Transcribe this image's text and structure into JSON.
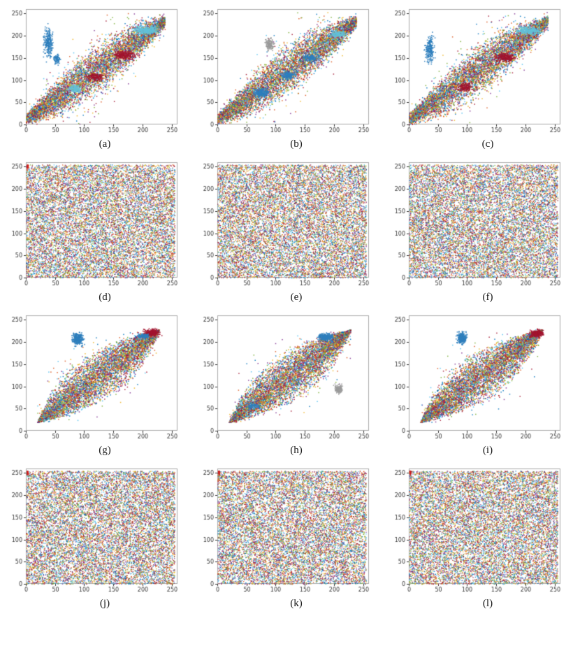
{
  "figure": {
    "palette": [
      "#0072BD",
      "#D95319",
      "#EDB120",
      "#7E2F8E",
      "#77AC30",
      "#4DBEEE",
      "#A2142F"
    ],
    "axis_color": "#333333",
    "box_color": "#aaaaaa"
  },
  "chart_data": [
    {
      "label": "(a)",
      "type": "scatter",
      "pattern": "diagonal-band",
      "xlim": [
        0,
        250
      ],
      "ylim": [
        0,
        250
      ],
      "xticks": [
        0,
        50,
        100,
        150,
        200,
        250
      ],
      "yticks": [
        0,
        50,
        100,
        150,
        200,
        250
      ],
      "n_points": 6500,
      "seed": 101,
      "clusters": [
        {
          "x": 38,
          "y": 185,
          "rx": 8,
          "ry": 34,
          "n": 260,
          "color": "#2e7ebd"
        },
        {
          "x": 52,
          "y": 148,
          "rx": 6,
          "ry": 12,
          "n": 90,
          "color": "#2e7ebd"
        },
        {
          "x": 205,
          "y": 213,
          "rx": 22,
          "ry": 9,
          "n": 300,
          "color": "#63c1d8"
        },
        {
          "x": 168,
          "y": 158,
          "rx": 18,
          "ry": 10,
          "n": 230,
          "color": "#a2142f"
        },
        {
          "x": 118,
          "y": 108,
          "rx": 14,
          "ry": 9,
          "n": 150,
          "color": "#a2142f"
        },
        {
          "x": 84,
          "y": 82,
          "rx": 12,
          "ry": 8,
          "n": 130,
          "color": "#63c1d8"
        }
      ]
    },
    {
      "label": "(b)",
      "type": "scatter",
      "pattern": "diagonal-band",
      "xlim": [
        0,
        250
      ],
      "ylim": [
        0,
        250
      ],
      "xticks": [
        0,
        50,
        100,
        150,
        200,
        250
      ],
      "yticks": [
        0,
        50,
        100,
        150,
        200,
        250
      ],
      "n_points": 6500,
      "seed": 202,
      "clusters": [
        {
          "x": 88,
          "y": 182,
          "rx": 7,
          "ry": 14,
          "n": 150,
          "color": "#9a9a9a"
        },
        {
          "x": 75,
          "y": 72,
          "rx": 14,
          "ry": 10,
          "n": 220,
          "color": "#2e7ebd"
        },
        {
          "x": 120,
          "y": 112,
          "rx": 12,
          "ry": 9,
          "n": 170,
          "color": "#2e7ebd"
        },
        {
          "x": 160,
          "y": 152,
          "rx": 14,
          "ry": 9,
          "n": 160,
          "color": "#2e7ebd"
        },
        {
          "x": 205,
          "y": 205,
          "rx": 14,
          "ry": 8,
          "n": 140,
          "color": "#63c1d8"
        }
      ]
    },
    {
      "label": "(c)",
      "type": "scatter",
      "pattern": "diagonal-band",
      "xlim": [
        0,
        250
      ],
      "ylim": [
        0,
        250
      ],
      "xticks": [
        0,
        50,
        100,
        150,
        200,
        250
      ],
      "yticks": [
        0,
        50,
        100,
        150,
        200,
        250
      ],
      "n_points": 6500,
      "seed": 303,
      "clusters": [
        {
          "x": 35,
          "y": 170,
          "rx": 8,
          "ry": 30,
          "n": 230,
          "color": "#2e7ebd"
        },
        {
          "x": 205,
          "y": 213,
          "rx": 20,
          "ry": 9,
          "n": 260,
          "color": "#63c1d8"
        },
        {
          "x": 165,
          "y": 152,
          "rx": 16,
          "ry": 10,
          "n": 230,
          "color": "#a2142f"
        },
        {
          "x": 95,
          "y": 85,
          "rx": 12,
          "ry": 9,
          "n": 130,
          "color": "#a2142f"
        }
      ]
    },
    {
      "label": "(d)",
      "type": "scatter",
      "pattern": "uniform",
      "xlim": [
        0,
        250
      ],
      "ylim": [
        0,
        250
      ],
      "xticks": [
        0,
        50,
        100,
        150,
        200,
        250
      ],
      "yticks": [
        0,
        50,
        100,
        150,
        200,
        250
      ],
      "n_points": 13000,
      "seed": 404,
      "clusters": [
        {
          "x": 2,
          "y": 252,
          "rx": 1,
          "ry": 4,
          "n": 40,
          "color": "#cc2222"
        }
      ]
    },
    {
      "label": "(e)",
      "type": "scatter",
      "pattern": "uniform",
      "xlim": [
        0,
        250
      ],
      "ylim": [
        0,
        250
      ],
      "xticks": [
        0,
        50,
        100,
        150,
        200,
        250
      ],
      "yticks": [
        0,
        50,
        100,
        150,
        200,
        250
      ],
      "n_points": 13000,
      "seed": 505,
      "clusters": []
    },
    {
      "label": "(f)",
      "type": "scatter",
      "pattern": "uniform",
      "xlim": [
        0,
        250
      ],
      "ylim": [
        0,
        250
      ],
      "xticks": [
        0,
        50,
        100,
        150,
        200,
        250
      ],
      "yticks": [
        0,
        50,
        100,
        150,
        200,
        250
      ],
      "n_points": 13000,
      "seed": 606,
      "clusters": []
    },
    {
      "label": "(g)",
      "type": "scatter",
      "pattern": "lens",
      "xlim": [
        0,
        250
      ],
      "ylim": [
        0,
        250
      ],
      "xticks": [
        0,
        50,
        100,
        150,
        200,
        250
      ],
      "yticks": [
        0,
        50,
        100,
        150,
        200,
        250
      ],
      "n_points": 6500,
      "seed": 707,
      "clusters": [
        {
          "x": 88,
          "y": 208,
          "rx": 9,
          "ry": 14,
          "n": 300,
          "color": "#2e7ebd"
        },
        {
          "x": 215,
          "y": 222,
          "rx": 13,
          "ry": 8,
          "n": 260,
          "color": "#a2142f"
        },
        {
          "x": 200,
          "y": 214,
          "rx": 10,
          "ry": 6,
          "n": 110,
          "color": "#2e7ebd"
        }
      ]
    },
    {
      "label": "(h)",
      "type": "scatter",
      "pattern": "lens",
      "xlim": [
        0,
        250
      ],
      "ylim": [
        0,
        250
      ],
      "xticks": [
        0,
        50,
        100,
        150,
        200,
        250
      ],
      "yticks": [
        0,
        50,
        100,
        150,
        200,
        250
      ],
      "n_points": 6500,
      "seed": 808,
      "clusters": [
        {
          "x": 185,
          "y": 212,
          "rx": 14,
          "ry": 8,
          "n": 280,
          "color": "#2e7ebd"
        },
        {
          "x": 207,
          "y": 95,
          "rx": 7,
          "ry": 10,
          "n": 140,
          "color": "#9a9a9a"
        },
        {
          "x": 60,
          "y": 58,
          "rx": 10,
          "ry": 8,
          "n": 90,
          "color": "#2e7ebd"
        }
      ]
    },
    {
      "label": "(i)",
      "type": "scatter",
      "pattern": "lens",
      "xlim": [
        0,
        250
      ],
      "ylim": [
        0,
        250
      ],
      "xticks": [
        0,
        50,
        100,
        150,
        200,
        250
      ],
      "yticks": [
        0,
        50,
        100,
        150,
        200,
        250
      ],
      "n_points": 6500,
      "seed": 909,
      "clusters": [
        {
          "x": 90,
          "y": 210,
          "rx": 8,
          "ry": 13,
          "n": 280,
          "color": "#2e7ebd"
        },
        {
          "x": 218,
          "y": 220,
          "rx": 12,
          "ry": 9,
          "n": 240,
          "color": "#a2142f"
        }
      ]
    },
    {
      "label": "(j)",
      "type": "scatter",
      "pattern": "uniform",
      "xlim": [
        0,
        250
      ],
      "ylim": [
        0,
        250
      ],
      "xticks": [
        0,
        50,
        100,
        150,
        200,
        250
      ],
      "yticks": [
        0,
        50,
        100,
        150,
        200,
        250
      ],
      "n_points": 13000,
      "seed": 1010,
      "clusters": [
        {
          "x": 2,
          "y": 252,
          "rx": 1,
          "ry": 4,
          "n": 40,
          "color": "#cc2222"
        }
      ]
    },
    {
      "label": "(k)",
      "type": "scatter",
      "pattern": "uniform",
      "xlim": [
        0,
        250
      ],
      "ylim": [
        0,
        250
      ],
      "xticks": [
        0,
        50,
        100,
        150,
        200,
        250
      ],
      "yticks": [
        0,
        50,
        100,
        150,
        200,
        250
      ],
      "n_points": 13000,
      "seed": 1111,
      "clusters": [
        {
          "x": 2,
          "y": 252,
          "rx": 1,
          "ry": 4,
          "n": 40,
          "color": "#cc2222"
        }
      ]
    },
    {
      "label": "(l)",
      "type": "scatter",
      "pattern": "uniform",
      "xlim": [
        0,
        250
      ],
      "ylim": [
        0,
        250
      ],
      "xticks": [
        0,
        50,
        100,
        150,
        200,
        250
      ],
      "yticks": [
        0,
        50,
        100,
        150,
        200,
        250
      ],
      "n_points": 13000,
      "seed": 1212,
      "clusters": [
        {
          "x": 2,
          "y": 252,
          "rx": 1,
          "ry": 4,
          "n": 40,
          "color": "#cc2222"
        }
      ]
    }
  ]
}
